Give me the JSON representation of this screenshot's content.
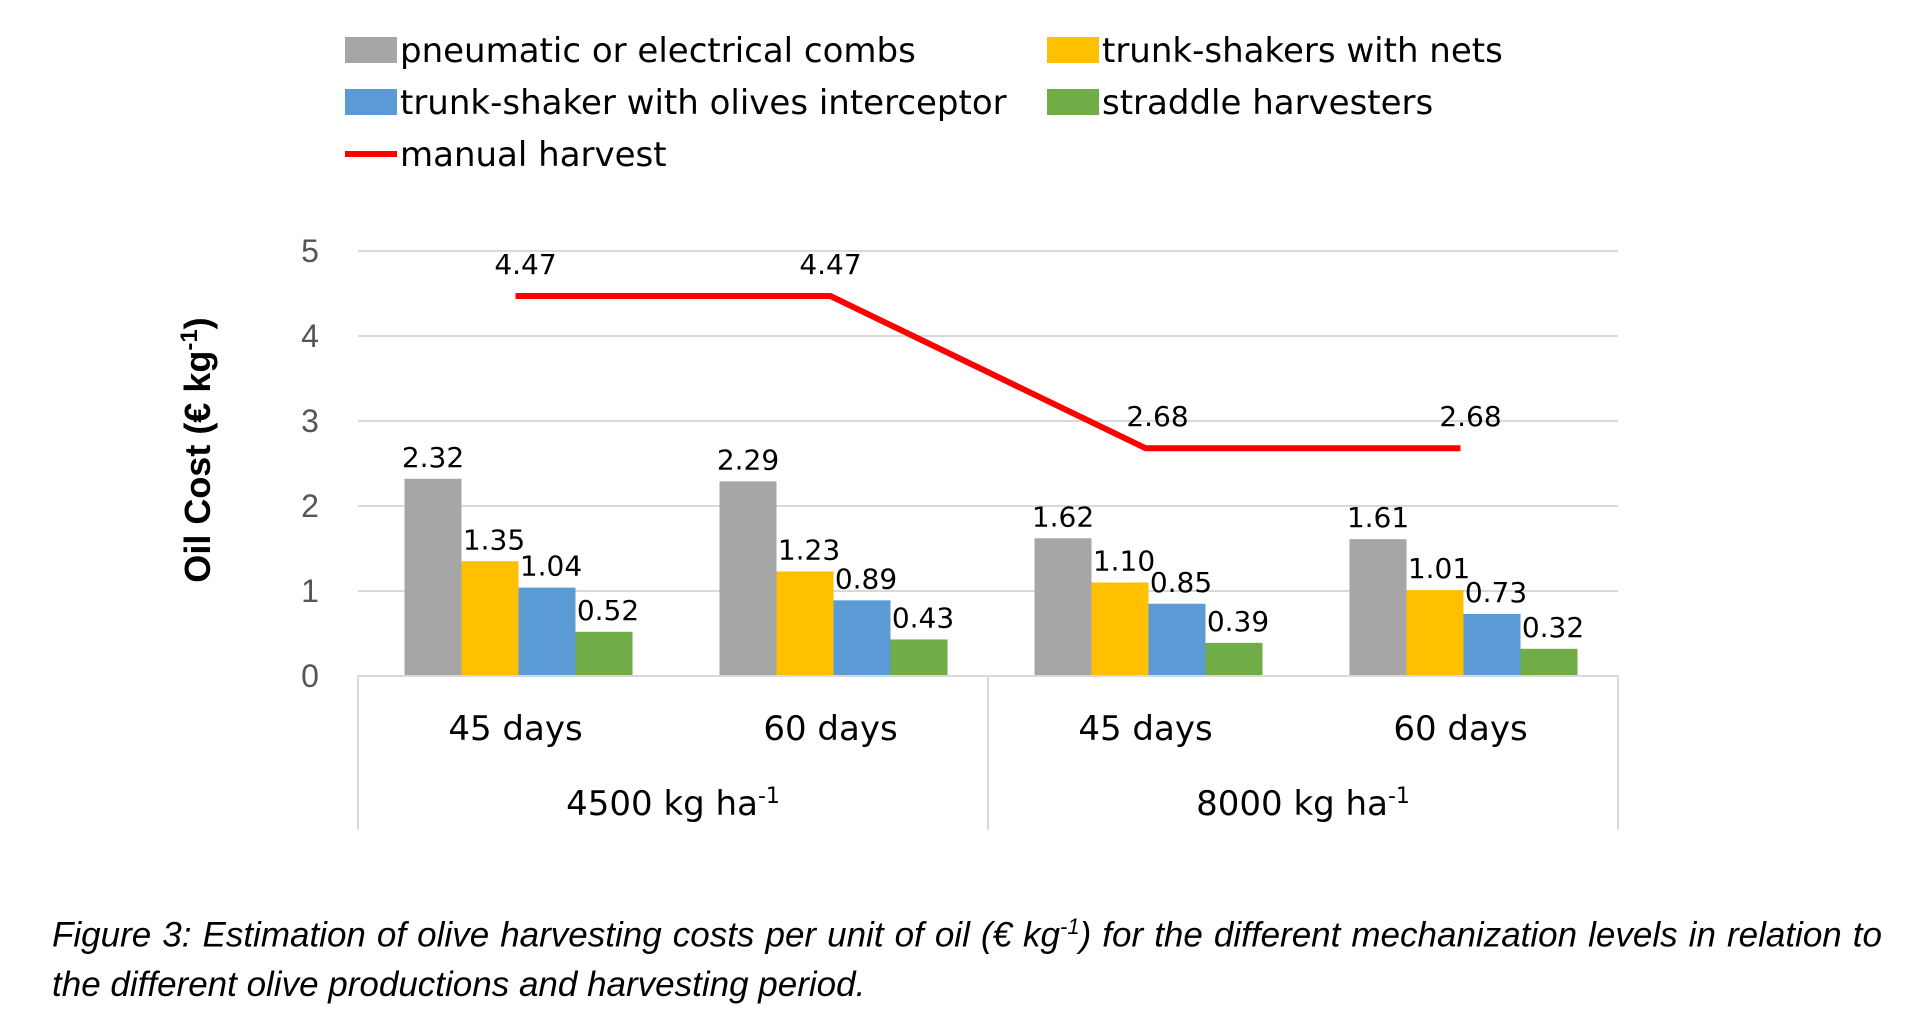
{
  "chart_data": {
    "type": "bar",
    "ylabel": "Oil Cost  (€ kg",
    "ylabel_sup": "-1",
    "ylabel_close": ")",
    "ylim": [
      0,
      5
    ],
    "yticks": [
      "0",
      "1",
      "2",
      "3",
      "4",
      "5"
    ],
    "grid": true,
    "legend_position": "top",
    "categories": [
      "45 days",
      "60 days",
      "45 days",
      "60 days"
    ],
    "groups": [
      {
        "label": "4500 kg  ha",
        "sup": "-1"
      },
      {
        "label": "8000 kg  ha",
        "sup": "-1"
      }
    ],
    "series": [
      {
        "name": "pneumatic or electrical combs",
        "color": "#a6a6a6",
        "values": [
          2.32,
          2.29,
          1.62,
          1.61
        ],
        "labels": [
          "2.32",
          "2.29",
          "1.62",
          "1.61"
        ]
      },
      {
        "name": "trunk-shakers with nets",
        "color": "#ffc000",
        "values": [
          1.35,
          1.23,
          1.1,
          1.01
        ],
        "labels": [
          "1.35",
          "1.23",
          "1.10",
          "1.01"
        ]
      },
      {
        "name": "trunk-shaker with olives interceptor",
        "color": "#5b9bd5",
        "values": [
          1.04,
          0.89,
          0.85,
          0.73
        ],
        "labels": [
          "1.04",
          "0.89",
          "0.85",
          "0.73"
        ]
      },
      {
        "name": "straddle harvesters",
        "color": "#70ad47",
        "values": [
          0.52,
          0.43,
          0.39,
          0.32
        ],
        "labels": [
          "0.52",
          "0.43",
          "0.39",
          "0.32"
        ]
      }
    ],
    "line_series": {
      "name": "manual harvest",
      "color": "#ff0000",
      "values": [
        4.47,
        4.47,
        2.68,
        2.68
      ],
      "labels": [
        "4.47",
        "4.47",
        "2.68",
        "2.68"
      ]
    }
  },
  "caption": {
    "part1": "Figure 3: Estimation of olive harvesting costs per unit of oil (€ kg",
    "sup": "-1",
    "part2": ") for the different mechanization levels in relation to the different olive productions and harvesting period."
  }
}
